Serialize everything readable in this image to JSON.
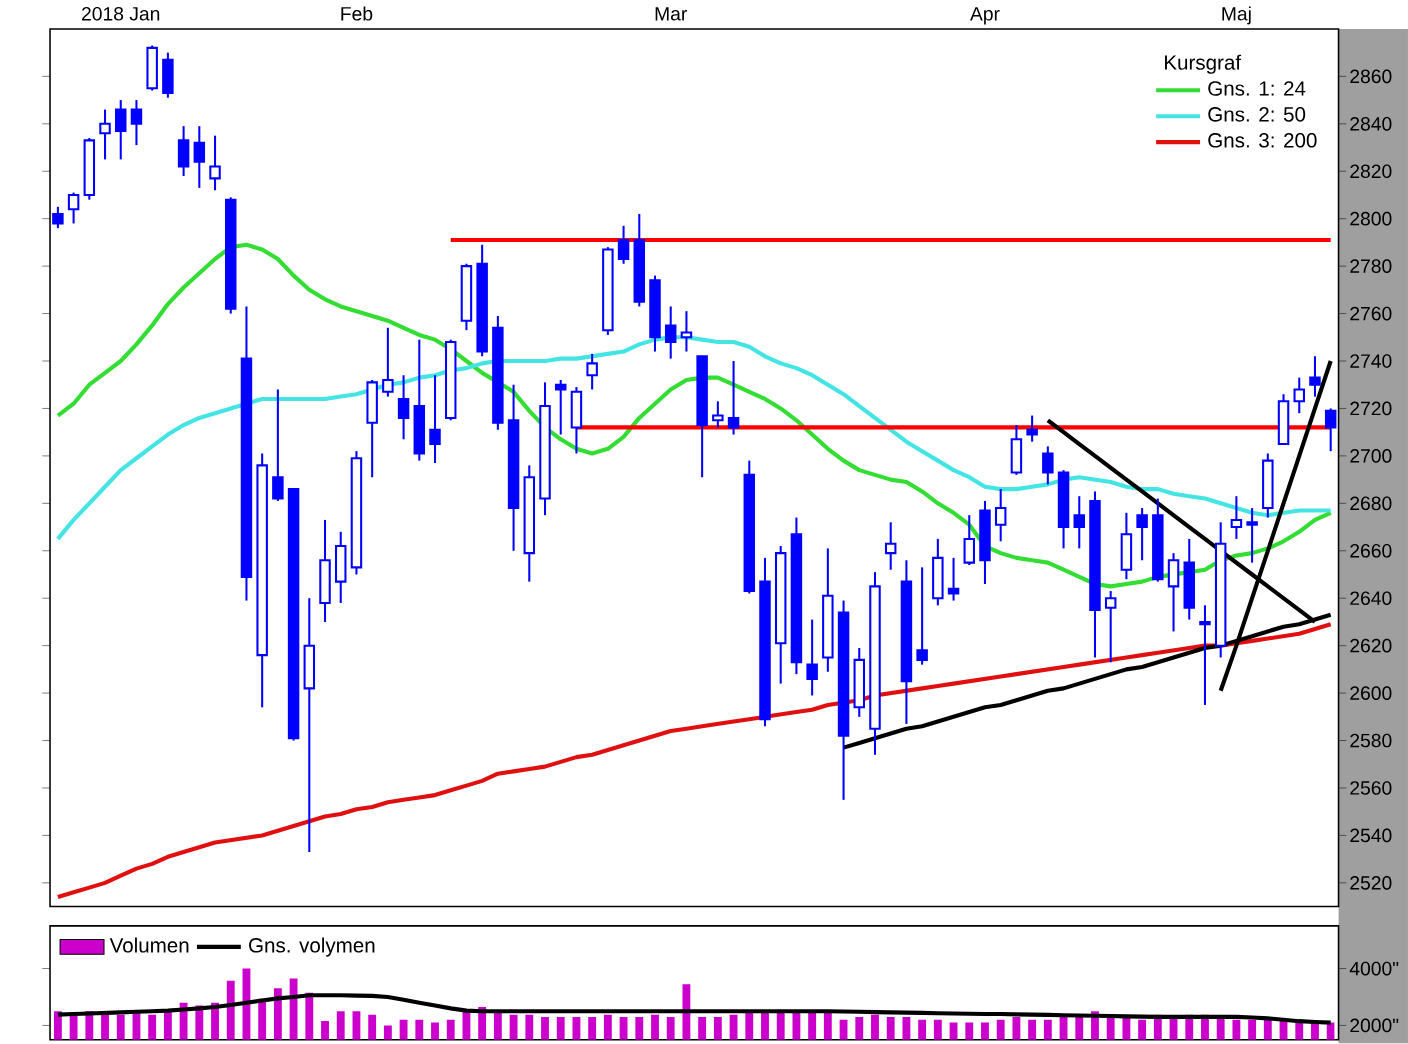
{
  "chart_data": [
    {
      "type": "candlestick",
      "color": "#0000ff",
      "legend_title": "Kursgraf",
      "legend": "top right",
      "categories": [
        null,
        null,
        null,
        null,
        "2018 Jan",
        null,
        null,
        null,
        null,
        null,
        null,
        null,
        null,
        null,
        null,
        null,
        null,
        null,
        null,
        "Feb",
        null,
        null,
        null,
        null,
        null,
        null,
        null,
        null,
        null,
        null,
        null,
        null,
        null,
        null,
        null,
        null,
        null,
        null,
        null,
        "Mar",
        null,
        null,
        null,
        null,
        null,
        null,
        null,
        null,
        null,
        null,
        null,
        null,
        null,
        null,
        null,
        null,
        null,
        null,
        null,
        "Apr",
        null,
        null,
        null,
        null,
        null,
        null,
        null,
        null,
        null,
        null,
        null,
        null,
        null,
        null,
        null,
        "Maj",
        null,
        null,
        null,
        null,
        null,
        null
      ],
      "ohlc": [
        [
          2802,
          2805,
          2796,
          2798
        ],
        [
          2804,
          2811,
          2798,
          2810
        ],
        [
          2810,
          2834,
          2808,
          2833
        ],
        [
          2836,
          2846,
          2825,
          2840
        ],
        [
          2846,
          2850,
          2825,
          2837
        ],
        [
          2846,
          2850,
          2831,
          2840
        ],
        [
          2855,
          2873,
          2854,
          2872
        ],
        [
          2867,
          2870,
          2851,
          2853
        ],
        [
          2833,
          2839,
          2818,
          2822
        ],
        [
          2832,
          2839,
          2813,
          2824
        ],
        [
          2817,
          2835,
          2812,
          2822
        ],
        [
          2808,
          2809,
          2760,
          2762
        ],
        [
          2741,
          2763,
          2639,
          2649
        ],
        [
          2616,
          2701,
          2594,
          2696
        ],
        [
          2691,
          2728,
          2681,
          2682
        ],
        [
          2686,
          2686,
          2580,
          2581
        ],
        [
          2602,
          2640,
          2533,
          2620
        ],
        [
          2638,
          2673,
          2630,
          2656
        ],
        [
          2647,
          2668,
          2638,
          2662
        ],
        [
          2653,
          2702,
          2650,
          2699
        ],
        [
          2714,
          2732,
          2691,
          2731
        ],
        [
          2727,
          2754,
          2725,
          2732
        ],
        [
          2724,
          2734,
          2707,
          2716
        ],
        [
          2721,
          2749,
          2698,
          2701
        ],
        [
          2711,
          2734,
          2697,
          2705
        ],
        [
          2716,
          2749,
          2715,
          2748
        ],
        [
          2757,
          2781,
          2753,
          2780
        ],
        [
          2781,
          2789,
          2742,
          2744
        ],
        [
          2754,
          2759,
          2711,
          2714
        ],
        [
          2715,
          2730,
          2660,
          2678
        ],
        [
          2659,
          2696,
          2647,
          2691
        ],
        [
          2682,
          2731,
          2675,
          2721
        ],
        [
          2730,
          2732,
          2709,
          2728
        ],
        [
          2712,
          2729,
          2701,
          2727
        ],
        [
          2734,
          2743,
          2728,
          2739
        ],
        [
          2753,
          2788,
          2751,
          2787
        ],
        [
          2791,
          2797,
          2781,
          2783
        ],
        [
          2791,
          2802,
          2763,
          2765
        ],
        [
          2774,
          2776,
          2744,
          2750
        ],
        [
          2755,
          2763,
          2741,
          2748
        ],
        [
          2750,
          2761,
          2744,
          2752
        ],
        [
          2742,
          2742,
          2691,
          2713
        ],
        [
          2715,
          2723,
          2712,
          2717
        ],
        [
          2716,
          2740,
          2709,
          2712
        ],
        [
          2692,
          2698,
          2642,
          2643
        ],
        [
          2647,
          2657,
          2586,
          2589
        ],
        [
          2621,
          2662,
          2604,
          2659
        ],
        [
          2667,
          2674,
          2608,
          2613
        ],
        [
          2612,
          2631,
          2599,
          2606
        ],
        [
          2615,
          2661,
          2609,
          2641
        ],
        [
          2634,
          2639,
          2555,
          2582
        ],
        [
          2594,
          2619,
          2590,
          2614
        ],
        [
          2585,
          2651,
          2574,
          2645
        ],
        [
          2659,
          2672,
          2652,
          2663
        ],
        [
          2647,
          2656,
          2587,
          2605
        ],
        [
          2618,
          2653,
          2612,
          2614
        ],
        [
          2640,
          2665,
          2637,
          2657
        ],
        [
          2644,
          2657,
          2639,
          2642
        ],
        [
          2655,
          2675,
          2654,
          2665
        ],
        [
          2677,
          2681,
          2646,
          2656
        ],
        [
          2671,
          2686,
          2664,
          2678
        ],
        [
          2693,
          2713,
          2692,
          2707
        ],
        [
          2711,
          2717,
          2706,
          2709
        ],
        [
          2701,
          2704,
          2688,
          2693
        ],
        [
          2693,
          2694,
          2661,
          2670
        ],
        [
          2675,
          2683,
          2661,
          2670
        ],
        [
          2681,
          2685,
          2615,
          2635
        ],
        [
          2636,
          2643,
          2613,
          2640
        ],
        [
          2652,
          2676,
          2648,
          2667
        ],
        [
          2675,
          2678,
          2656,
          2670
        ],
        [
          2675,
          2682,
          2647,
          2648
        ],
        [
          2645,
          2659,
          2626,
          2656
        ],
        [
          2655,
          2665,
          2631,
          2636
        ],
        [
          2630,
          2637,
          2595,
          2629
        ],
        [
          2620,
          2672,
          2615,
          2663
        ],
        [
          2670,
          2683,
          2665,
          2673
        ],
        [
          2672,
          2678,
          2655,
          2671
        ],
        [
          2678,
          2701,
          2674,
          2698
        ],
        [
          2705,
          2726,
          2705,
          2723
        ],
        [
          2723,
          2733,
          2718,
          2728
        ],
        [
          2733,
          2742,
          2725,
          2730
        ],
        [
          2719,
          2720,
          2702,
          2712
        ]
      ],
      "series": [
        {
          "name": "Gns. 1: 24",
          "type": "line",
          "color": "#33dd33",
          "values": [
            2717,
            2722,
            2730,
            2735,
            2740,
            2747,
            2755,
            2764,
            2771,
            2777,
            2783,
            2788,
            2789,
            2787,
            2783,
            2776,
            2770,
            2766,
            2763,
            2761,
            2759,
            2757,
            2754,
            2751,
            2749,
            2745,
            2740,
            2735,
            2731,
            2727,
            2719,
            2712,
            2707,
            2703,
            2701,
            2703,
            2708,
            2716,
            2722,
            2728,
            2732,
            2733,
            2733,
            2730,
            2727,
            2724,
            2720,
            2715,
            2709,
            2703,
            2698,
            2694,
            2692,
            2690,
            2689,
            2685,
            2680,
            2676,
            2671,
            2662,
            2659,
            2657,
            2656,
            2655,
            2652,
            2649,
            2646,
            2645,
            2646,
            2647,
            2649,
            2650,
            2651,
            2652,
            2656,
            2658,
            2659,
            2661,
            2664,
            2668,
            2673,
            2676
          ]
        },
        {
          "name": "Gns. 2: 50",
          "type": "line",
          "color": "#44e4e4",
          "values": [
            2665,
            2673,
            2680,
            2687,
            2694,
            2699,
            2704,
            2709,
            2713,
            2716,
            2718,
            2720,
            2722,
            2724,
            2724,
            2724,
            2724,
            2724,
            2725,
            2726,
            2728,
            2730,
            2731,
            2733,
            2734,
            2736,
            2737,
            2739,
            2740,
            2740,
            2740,
            2740,
            2741,
            2741,
            2742,
            2743,
            2744,
            2747,
            2749,
            2750,
            2750,
            2749,
            2748,
            2748,
            2746,
            2742,
            2739,
            2737,
            2734,
            2730,
            2726,
            2721,
            2716,
            2711,
            2706,
            2702,
            2698,
            2694,
            2691,
            2687,
            2686,
            2686,
            2687,
            2688,
            2690,
            2691,
            2690,
            2689,
            2687,
            2686,
            2686,
            2684,
            2683,
            2682,
            2680,
            2678,
            2676,
            2675,
            2676,
            2677,
            2677,
            2677
          ]
        },
        {
          "name": "Gns. 3: 200",
          "type": "line",
          "color": "#e01010",
          "values": [
            2514,
            2516,
            2518,
            2520,
            2523,
            2526,
            2528,
            2531,
            2533,
            2535,
            2537,
            2538,
            2539,
            2540,
            2542,
            2544,
            2546,
            2548,
            2549,
            2551,
            2552,
            2554,
            2555,
            2556,
            2557,
            2559,
            2561,
            2563,
            2566,
            2567,
            2568,
            2569,
            2571,
            2573,
            2574,
            2576,
            2578,
            2580,
            2582,
            2584,
            2585,
            2586,
            2587,
            2588,
            2589,
            2590,
            2591,
            2592,
            2593,
            2595,
            2596,
            2597,
            2599,
            2600,
            2601,
            2602,
            2603,
            2604,
            2605,
            2606,
            2607,
            2608,
            2609,
            2610,
            2611,
            2612,
            2613,
            2614,
            2615,
            2616,
            2617,
            2618,
            2619,
            2620,
            2620,
            2621,
            2622,
            2623,
            2624,
            2625,
            2627,
            2629
          ]
        },
        {
          "type": "line",
          "color": "#ff0000",
          "values": [
            null,
            null,
            null,
            null,
            null,
            null,
            null,
            null,
            null,
            null,
            null,
            null,
            null,
            null,
            null,
            null,
            null,
            null,
            null,
            null,
            null,
            null,
            null,
            null,
            null,
            2791,
            2791,
            2791,
            2791,
            2791,
            2791,
            2791,
            2791,
            2791,
            2791,
            2791,
            2791,
            2791,
            2791,
            2791,
            2791,
            2791,
            2791,
            2791,
            2791,
            2791,
            2791,
            2791,
            2791,
            2791,
            2791,
            2791,
            2791,
            2791,
            2791,
            2791,
            2791,
            2791,
            2791,
            2791,
            2791,
            2791,
            2791,
            2791,
            2791,
            2791,
            2791,
            2791,
            2791,
            2791,
            2791,
            2791,
            2791,
            2791,
            2791,
            2791,
            2791,
            2791,
            2791,
            2791,
            2791,
            2791
          ]
        },
        {
          "type": "line",
          "color": "#ff0000",
          "values": [
            null,
            null,
            null,
            null,
            null,
            null,
            null,
            null,
            null,
            null,
            null,
            null,
            null,
            null,
            null,
            null,
            null,
            null,
            null,
            null,
            null,
            null,
            null,
            null,
            null,
            null,
            null,
            null,
            null,
            null,
            null,
            null,
            null,
            2712,
            2712,
            2712,
            2712,
            2712,
            2712,
            2712,
            2712,
            2712,
            2712,
            2712,
            2712,
            2712,
            2712,
            2712,
            2712,
            2712,
            2712,
            2712,
            2712,
            2712,
            2712,
            2712,
            2712,
            2712,
            2712,
            2712,
            2712,
            2712,
            2712,
            2712,
            2712,
            2712,
            2712,
            2712,
            2712,
            2712,
            2712,
            2712,
            2712,
            2712,
            2712,
            2712,
            2712,
            2712,
            2712,
            2712,
            2712,
            2712
          ]
        },
        {
          "type": "line",
          "color": "#000000",
          "values": [
            null,
            null,
            null,
            null,
            null,
            null,
            null,
            null,
            null,
            null,
            null,
            null,
            null,
            null,
            null,
            null,
            null,
            null,
            null,
            null,
            null,
            null,
            null,
            null,
            null,
            null,
            null,
            null,
            null,
            null,
            null,
            null,
            null,
            null,
            null,
            null,
            null,
            null,
            null,
            null,
            null,
            null,
            null,
            null,
            null,
            null,
            null,
            null,
            null,
            null,
            2577,
            2579,
            2581,
            2583,
            2585,
            2586,
            2588,
            2590,
            2592,
            2594,
            2595,
            2597,
            2599,
            2601,
            2602,
            2604,
            2606,
            2608,
            2610,
            2611,
            2613,
            2615,
            2617,
            2619,
            2620,
            2622,
            2624,
            2626,
            2628,
            2629,
            2631,
            2633
          ]
        },
        {
          "type": "line",
          "color": "#000000",
          "values": [
            null,
            null,
            null,
            null,
            null,
            null,
            null,
            null,
            null,
            null,
            null,
            null,
            null,
            null,
            null,
            null,
            null,
            null,
            null,
            null,
            null,
            null,
            null,
            null,
            null,
            null,
            null,
            null,
            null,
            null,
            null,
            null,
            null,
            null,
            null,
            null,
            null,
            null,
            null,
            null,
            null,
            null,
            null,
            null,
            null,
            null,
            null,
            null,
            null,
            null,
            null,
            null,
            null,
            null,
            null,
            null,
            null,
            null,
            null,
            null,
            null,
            null,
            null,
            2715,
            2710,
            2705,
            2700,
            2695,
            2690,
            2685,
            2680,
            2675,
            2670,
            2665,
            2660,
            2655,
            2650,
            2645,
            2640,
            2635,
            2630,
            null
          ]
        },
        {
          "type": "line",
          "color": "#000000",
          "values": [
            null,
            null,
            null,
            null,
            null,
            null,
            null,
            null,
            null,
            null,
            null,
            null,
            null,
            null,
            null,
            null,
            null,
            null,
            null,
            null,
            null,
            null,
            null,
            null,
            null,
            null,
            null,
            null,
            null,
            null,
            null,
            null,
            null,
            null,
            null,
            null,
            null,
            null,
            null,
            null,
            null,
            null,
            null,
            null,
            null,
            null,
            null,
            null,
            null,
            null,
            null,
            null,
            null,
            null,
            null,
            null,
            null,
            null,
            null,
            null,
            null,
            null,
            null,
            null,
            null,
            null,
            null,
            null,
            null,
            null,
            null,
            null,
            null,
            null,
            2601,
            2620,
            2640,
            2660,
            2680,
            2700,
            2720,
            2740
          ]
        }
      ],
      "ylim": [
        2510,
        2880
      ],
      "yticks": [
        2520,
        2540,
        2560,
        2580,
        2600,
        2620,
        2640,
        2660,
        2680,
        2700,
        2720,
        2740,
        2760,
        2780,
        2800,
        2820,
        2840,
        2860
      ]
    },
    {
      "type": "bar",
      "legend": "top left",
      "tick_labels": "y",
      "categories": [
        null,
        null,
        null,
        null,
        null,
        null,
        null,
        null,
        null,
        null,
        null,
        null,
        null,
        null,
        null,
        null,
        null,
        null,
        null,
        null,
        null,
        null,
        null,
        null,
        null,
        null,
        null,
        null,
        null,
        null,
        null,
        null,
        null,
        null,
        null,
        null,
        null,
        null,
        null,
        null,
        null,
        null,
        null,
        null,
        null,
        null,
        null,
        null,
        null,
        null,
        null,
        null,
        null,
        null,
        null,
        null,
        null,
        null,
        null,
        null,
        null,
        null,
        null,
        null,
        null,
        null,
        null,
        null,
        null,
        null,
        null,
        null,
        null,
        null,
        null,
        null,
        null,
        null,
        null,
        null,
        null,
        null
      ],
      "series": [
        {
          "name": "Volumen",
          "color": "#cc00cc",
          "values": [
            2500,
            2380,
            2500,
            2380,
            2380,
            2500,
            2380,
            2500,
            2800,
            2700,
            2800,
            3570,
            4000,
            2940,
            3310,
            3650,
            3150,
            2160,
            2500,
            2500,
            2380,
            2000,
            2200,
            2200,
            2100,
            2200,
            2500,
            2650,
            2500,
            2380,
            2380,
            2300,
            2300,
            2300,
            2300,
            2380,
            2300,
            2300,
            2380,
            2300,
            3450,
            2300,
            2300,
            2380,
            2500,
            2500,
            2500,
            2500,
            2500,
            2500,
            2200,
            2300,
            2380,
            2300,
            2300,
            2200,
            2200,
            2100,
            2100,
            2100,
            2200,
            2300,
            2200,
            2200,
            2380,
            2300,
            2500,
            2380,
            2300,
            2200,
            2380,
            2300,
            2380,
            2380,
            2300,
            2200,
            2200,
            2200,
            2200,
            2100,
            2100,
            2100
          ]
        },
        {
          "name": "Gns. volymen",
          "type": "line",
          "color": "#000000",
          "values": [
            2380,
            2400,
            2420,
            2440,
            2460,
            2480,
            2500,
            2520,
            2560,
            2600,
            2650,
            2720,
            2800,
            2880,
            2950,
            3000,
            3060,
            3060,
            3060,
            3050,
            3040,
            3000,
            2900,
            2800,
            2700,
            2600,
            2520,
            2500,
            2500,
            2500,
            2500,
            2500,
            2500,
            2500,
            2500,
            2500,
            2500,
            2500,
            2500,
            2500,
            2500,
            2500,
            2500,
            2500,
            2500,
            2500,
            2500,
            2500,
            2500,
            2500,
            2490,
            2480,
            2470,
            2460,
            2450,
            2440,
            2430,
            2420,
            2410,
            2400,
            2400,
            2390,
            2380,
            2370,
            2360,
            2350,
            2340,
            2330,
            2320,
            2310,
            2300,
            2300,
            2300,
            2300,
            2300,
            2300,
            2280,
            2250,
            2200,
            2150,
            2120,
            2100
          ]
        }
      ],
      "ylim": [
        1500,
        5500
      ],
      "yticks": [
        {
          "value": 2000,
          "label": "2000\""
        },
        {
          "value": 4000,
          "label": "4000\""
        }
      ]
    }
  ]
}
